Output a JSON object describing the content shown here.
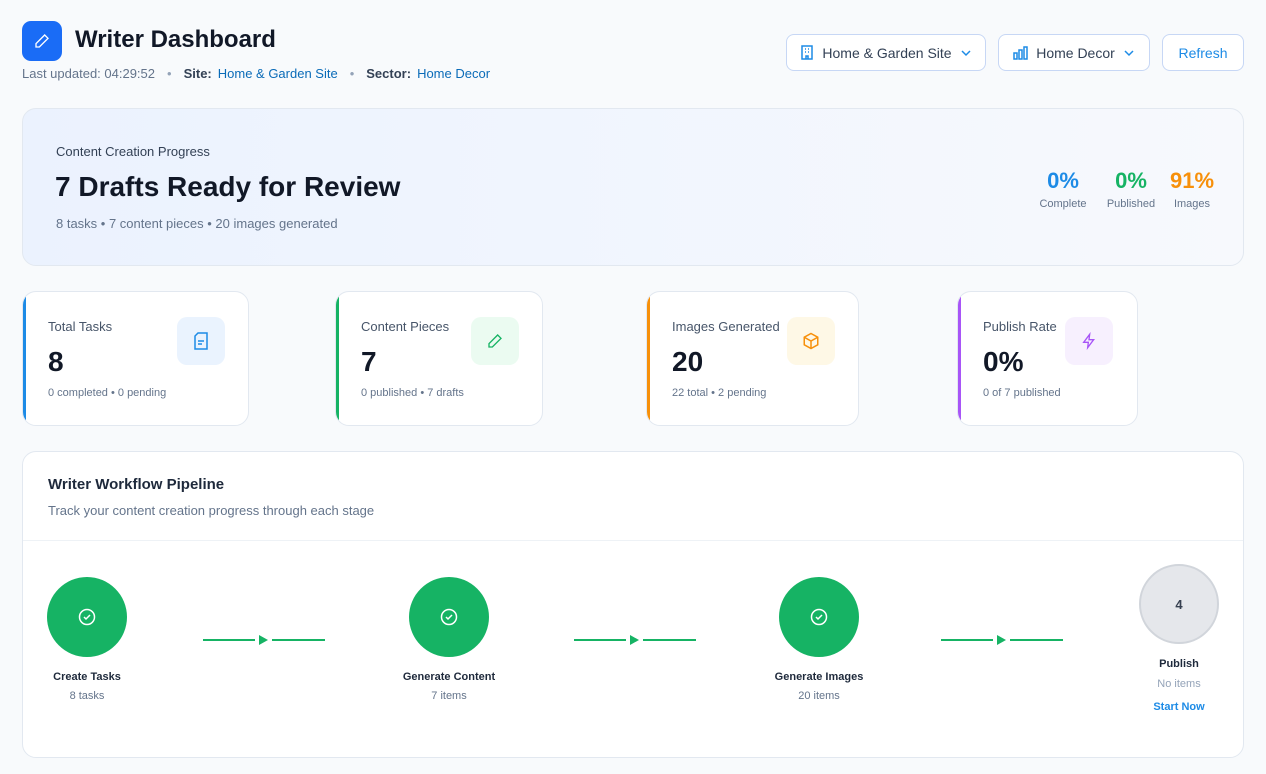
{
  "header": {
    "title": "Writer Dashboard",
    "last_updated": "Last updated: 04:29:52",
    "site_label": "Site:",
    "site_value": "Home & Garden Site",
    "sector_label": "Sector:",
    "sector_value": "Home Decor"
  },
  "toolbar": {
    "site_select": "Home & Garden Site",
    "sector_select": "Home Decor",
    "refresh": "Refresh"
  },
  "hero": {
    "eyebrow": "Content Creation Progress",
    "title": "7 Drafts Ready for Review",
    "summary": "8 tasks • 7 content pieces • 20 images generated",
    "stats": [
      {
        "value": "0%",
        "label": "Complete",
        "color": "#1d8be6"
      },
      {
        "value": "0%",
        "label": "Published",
        "color": "#16b364"
      },
      {
        "value": "91%",
        "label": "Images",
        "color": "#f7900a"
      }
    ]
  },
  "stats": [
    {
      "label": "Total Tasks",
      "value": "8",
      "sub": "0 completed • 0 pending",
      "color": "#1d8be6",
      "icon": "document-icon"
    },
    {
      "label": "Content Pieces",
      "value": "7",
      "sub": "0 published • 7 drafts",
      "color": "#16b364",
      "icon": "pencil-icon"
    },
    {
      "label": "Images Generated",
      "value": "20",
      "sub": "22 total • 2 pending",
      "color": "#f7900a",
      "icon": "box-icon"
    },
    {
      "label": "Publish Rate",
      "value": "0%",
      "sub": "0 of 7 published",
      "color": "#a855f7",
      "icon": "lightning-icon"
    }
  ],
  "pipeline": {
    "title": "Writer Workflow Pipeline",
    "subtitle": "Track your content creation progress through each stage",
    "steps": [
      {
        "name": "Create Tasks",
        "count": "8 tasks",
        "done": true
      },
      {
        "name": "Generate Content",
        "count": "7 items",
        "done": true
      },
      {
        "name": "Generate Images",
        "count": "20 items",
        "done": true
      },
      {
        "name": "Publish",
        "count": "No items",
        "number": "4",
        "action": "Start Now",
        "done": false
      }
    ]
  }
}
